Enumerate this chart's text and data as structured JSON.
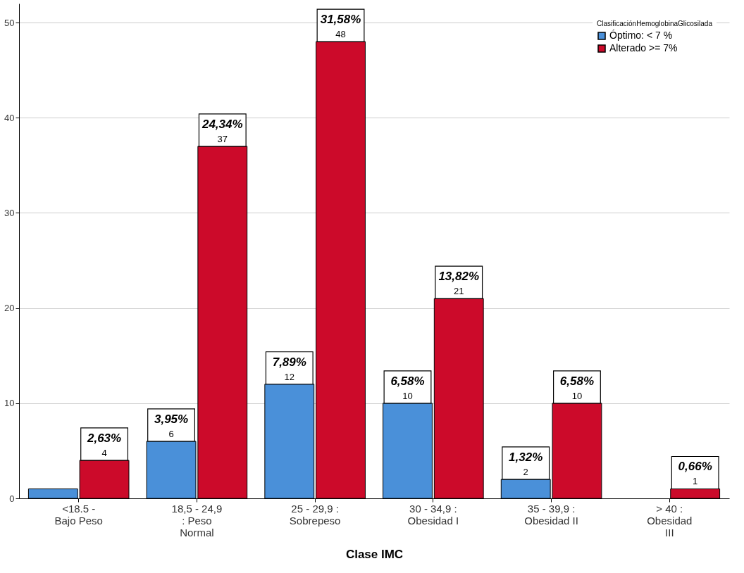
{
  "chart_data": {
    "type": "bar",
    "xlabel": "Clase IMC",
    "legend_title": "ClasificaciónHemoglobinaGlicosilada",
    "legend": "top right",
    "grid": "y",
    "categories": [
      "<18.5 -\nBajo Peso",
      "18,5 - 24,9\n: Peso\nNormal",
      "25 - 29,9 :\nSobrepeso",
      "30 - 34,9 :\nObesidad I",
      "35 - 39,9 :\nObesidad II",
      "> 40 :\nObesidad\nIII"
    ],
    "ylim": [
      0,
      52
    ],
    "yticks": [
      0,
      10,
      20,
      30,
      40,
      50
    ],
    "series": [
      {
        "name": "Óptimo: < 7 %",
        "color": "#4a90d9",
        "values": [
          1,
          6,
          12,
          10,
          2,
          null
        ],
        "value_labels": [
          null,
          "3,95%\n6",
          "7,89%\n12",
          "6,58%\n10",
          "1,32%\n2",
          null
        ]
      },
      {
        "name": "Alterado >= 7%",
        "color": "#cc0a2a",
        "values": [
          4,
          37,
          48,
          21,
          10,
          1
        ],
        "value_labels": [
          "2,63%\n4",
          "24,34%\n37",
          "31,58%\n48",
          "13,82%\n21",
          "6,58%\n10",
          "0,66%\n1"
        ]
      }
    ]
  }
}
